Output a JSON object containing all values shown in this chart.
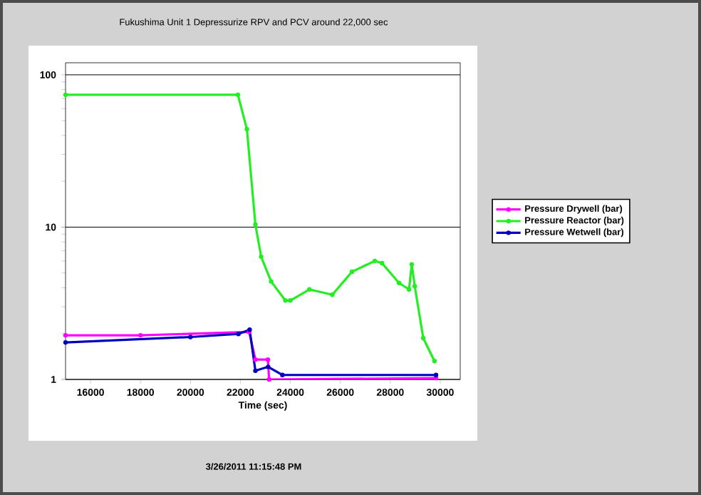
{
  "chart_data": {
    "type": "line",
    "title": "Fukushima Unit 1 Depressurize RPV and PCV around 22,000 sec",
    "xlabel": "Time (sec)",
    "annotations": [
      "3/26/2011 11:15:48 PM"
    ],
    "xlim": [
      15000,
      30800
    ],
    "xticks": [
      16000,
      18000,
      20000,
      22000,
      24000,
      26000,
      28000,
      30000
    ],
    "ylim": [
      1,
      120
    ],
    "yticks": [
      1,
      10,
      100
    ],
    "log": "y",
    "grid": "y",
    "legend": "right",
    "marker": "circle",
    "line_style": "solid",
    "series": [
      {
        "name": "Pressure Drywell (bar)",
        "color": "#ff00ff",
        "x": [
          15000,
          18000,
          21900,
          22350,
          22600,
          23100,
          23150,
          29830
        ],
        "values": [
          1.95,
          1.95,
          null,
          2.05,
          1.35,
          1.35,
          1.0,
          1.02
        ]
      },
      {
        "name": "Pressure Reactor (bar)",
        "color": "#22ee22",
        "x": [
          15000,
          21900,
          22260,
          22600,
          22830,
          23230,
          23800,
          24000,
          24760,
          25680,
          26470,
          27380,
          27670,
          28350,
          28750,
          28860,
          28980,
          29320,
          29770
        ],
        "values": [
          74,
          74,
          44,
          10.4,
          6.4,
          4.4,
          3.3,
          3.3,
          3.9,
          3.6,
          5.1,
          6.0,
          5.8,
          4.3,
          3.9,
          5.7,
          4.1,
          1.87,
          1.32
        ]
      },
      {
        "name": "Pressure Wetwell (bar)",
        "color": "#0000c0",
        "x": [
          15000,
          20000,
          21920,
          22370,
          22600,
          23110,
          23680,
          29830
        ],
        "values": [
          1.75,
          1.9,
          1.99,
          2.12,
          1.14,
          1.21,
          1.07,
          1.07
        ]
      }
    ]
  }
}
